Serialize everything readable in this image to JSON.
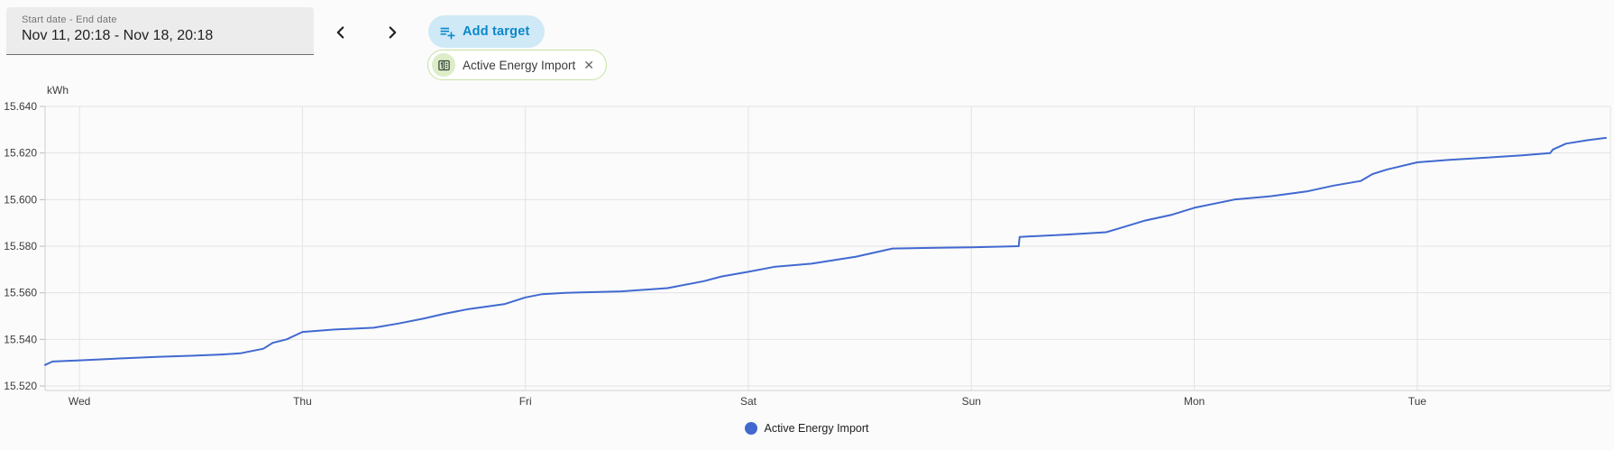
{
  "toolbar": {
    "date_range": {
      "label": "Start date - End date",
      "value": "Nov 11, 20:18 - Nov 18, 20:18"
    },
    "nav": {
      "prev_icon": "chevron-left",
      "next_icon": "chevron-right"
    },
    "add_target": {
      "label": "Add target",
      "icon": "playlist-add",
      "bg_color": "#cfe9f7",
      "text_color": "#0a87ca"
    },
    "target_chip": {
      "label": "Active Energy Import",
      "icon": "energy-meter",
      "close_icon": "✕",
      "border_color": "#c5e1a5",
      "avatar_color": "#dcedc8"
    }
  },
  "chart_data": {
    "type": "line",
    "title": "",
    "ylabel": "kWh",
    "xlabel": "",
    "grid": true,
    "legend_position": "bottom",
    "ylim": [
      15.52,
      15.64
    ],
    "ytick_step": 0.02,
    "ytick_labels": [
      "15.640",
      "15.620",
      "15.600",
      "15.580",
      "15.560",
      "15.540",
      "15.520"
    ],
    "x_range_hours": [
      0,
      168
    ],
    "x_start_label": "Nov 11, 20:18",
    "x_end_label": "Nov 18, 20:18",
    "day_ticks": [
      {
        "label": "Wed",
        "t": 3.7
      },
      {
        "label": "Thu",
        "t": 27.7
      },
      {
        "label": "Fri",
        "t": 51.7
      },
      {
        "label": "Sat",
        "t": 75.7
      },
      {
        "label": "Sun",
        "t": 99.7
      },
      {
        "label": "Mon",
        "t": 123.7
      },
      {
        "label": "Tue",
        "t": 147.7
      }
    ],
    "series": [
      {
        "name": "Active Energy Import",
        "color": "#4169d0",
        "points": [
          [
            0,
            15.529
          ],
          [
            0.8,
            15.5305
          ],
          [
            3.7,
            15.531
          ],
          [
            8,
            15.5318
          ],
          [
            12,
            15.5325
          ],
          [
            16,
            15.533
          ],
          [
            19,
            15.5335
          ],
          [
            21,
            15.534
          ],
          [
            23.5,
            15.536
          ],
          [
            24.5,
            15.5385
          ],
          [
            26,
            15.54
          ],
          [
            27.7,
            15.5432
          ],
          [
            31,
            15.5442
          ],
          [
            35.4,
            15.545
          ],
          [
            38,
            15.5468
          ],
          [
            40.8,
            15.549
          ],
          [
            43,
            15.551
          ],
          [
            45.6,
            15.553
          ],
          [
            49.5,
            15.5552
          ],
          [
            51.7,
            15.558
          ],
          [
            53.5,
            15.5594
          ],
          [
            56,
            15.56
          ],
          [
            62,
            15.5606
          ],
          [
            67,
            15.562
          ],
          [
            70.9,
            15.565
          ],
          [
            72.8,
            15.567
          ],
          [
            75.7,
            15.569
          ],
          [
            78.6,
            15.5712
          ],
          [
            82.5,
            15.5725
          ],
          [
            87.3,
            15.5755
          ],
          [
            91.2,
            15.579
          ],
          [
            96,
            15.5793
          ],
          [
            99.7,
            15.5795
          ],
          [
            104.8,
            15.58
          ],
          [
            104.9,
            15.584
          ],
          [
            110,
            15.585
          ],
          [
            114.2,
            15.586
          ],
          [
            115.5,
            15.5875
          ],
          [
            118.4,
            15.591
          ],
          [
            121.3,
            15.5935
          ],
          [
            123.7,
            15.5965
          ],
          [
            128,
            15.6
          ],
          [
            132,
            15.6015
          ],
          [
            135.8,
            15.6035
          ],
          [
            138.7,
            15.606
          ],
          [
            141.6,
            15.608
          ],
          [
            142.9,
            15.611
          ],
          [
            144.5,
            15.613
          ],
          [
            147.7,
            15.616
          ],
          [
            151,
            15.617
          ],
          [
            155.2,
            15.618
          ],
          [
            159,
            15.619
          ],
          [
            162,
            15.62
          ],
          [
            162.3,
            15.6215
          ],
          [
            163.7,
            15.624
          ],
          [
            166,
            15.6255
          ],
          [
            168,
            15.6265
          ]
        ]
      }
    ]
  }
}
